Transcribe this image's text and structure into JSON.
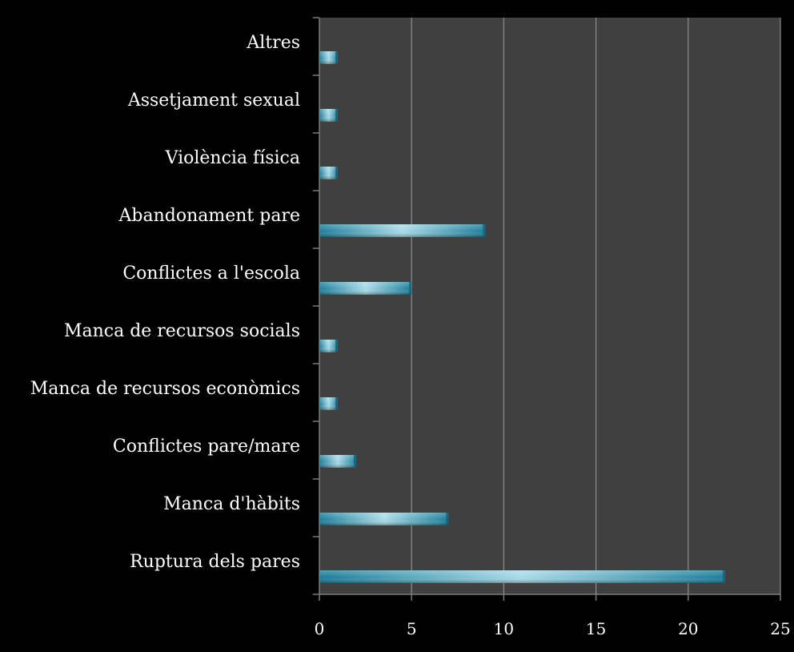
{
  "chart_data": {
    "type": "bar",
    "orientation": "horizontal",
    "categories": [
      "Altres",
      "Assetjament sexual",
      "Violència física",
      "Abandonament pare",
      "Conflictes a l'escola",
      "Manca de recursos socials",
      "Manca de recursos econòmics",
      "Conflictes pare/mare",
      "Manca d'hàbits",
      "Ruptura dels pares"
    ],
    "values": [
      1,
      1,
      1,
      9,
      5,
      1,
      1,
      2,
      7,
      22
    ],
    "xlim": [
      0,
      25
    ],
    "x_ticks": [
      "0",
      "5",
      "10",
      "15",
      "20",
      "25"
    ],
    "grid": "vertical",
    "title": "",
    "xlabel": "",
    "ylabel": ""
  },
  "colors": {
    "background": "#000000",
    "plot_area": "#404040",
    "gridline": "#8c8c8c",
    "bar_dark": "#1a7d9a",
    "bar_light": "#a9dbe8"
  }
}
